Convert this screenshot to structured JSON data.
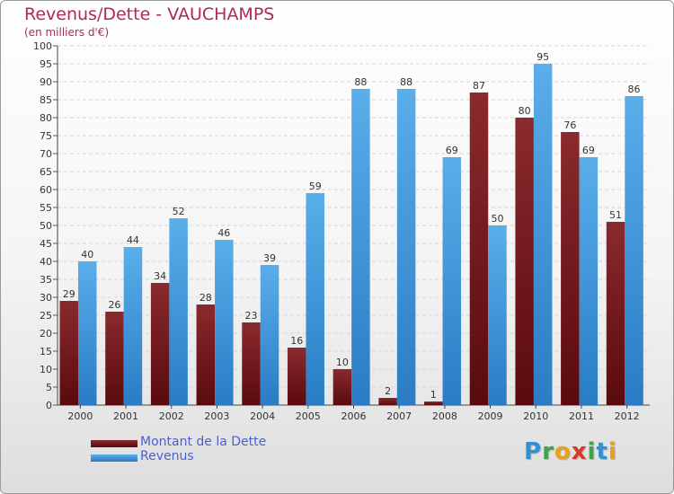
{
  "title": "Revenus/Dette - VAUCHAMPS",
  "subtitle": "(en milliers d'€)",
  "colors": {
    "dette": "#7a1a1e",
    "revenus": "#4a9fe2",
    "title": "#b0285a",
    "legend_text": "#4a5fd0"
  },
  "logo": [
    "P",
    "r",
    "o",
    "x",
    "i",
    "t",
    "i"
  ],
  "chart_data": {
    "type": "bar",
    "title": "Revenus/Dette - VAUCHAMPS",
    "subtitle": "(en milliers d'€)",
    "categories": [
      "2000",
      "2001",
      "2002",
      "2003",
      "2004",
      "2005",
      "2006",
      "2007",
      "2008",
      "2009",
      "2010",
      "2011",
      "2012"
    ],
    "series": [
      {
        "name": "Montant de la Dette",
        "values": [
          29,
          26,
          34,
          28,
          23,
          16,
          10,
          2,
          1,
          87,
          80,
          76,
          51
        ]
      },
      {
        "name": "Revenus",
        "values": [
          40,
          44,
          52,
          46,
          39,
          59,
          88,
          88,
          69,
          50,
          95,
          69,
          86
        ]
      }
    ],
    "ylim": [
      0,
      100
    ],
    "yticks": [
      0,
      5,
      10,
      15,
      20,
      25,
      30,
      35,
      40,
      45,
      50,
      55,
      60,
      65,
      70,
      75,
      80,
      85,
      90,
      95,
      100
    ],
    "grid": true,
    "legend_position": "bottom-left"
  }
}
